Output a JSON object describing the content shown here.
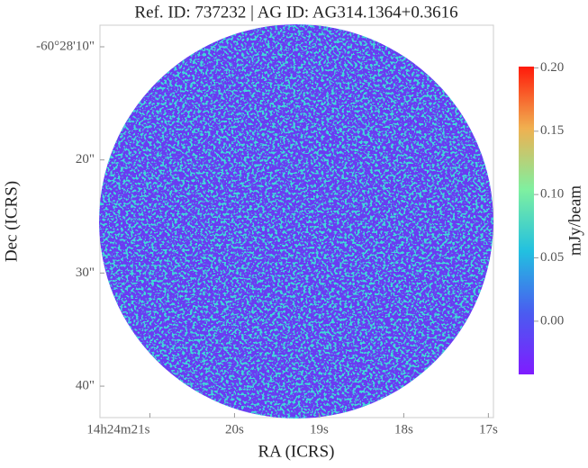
{
  "chart_data": {
    "type": "image",
    "title": "Ref. ID: 737232 | AG ID: AG314.1364+0.3616",
    "xlabel": "RA (ICRS)",
    "ylabel": "Dec (ICRS)",
    "xlim": [
      21.59,
      16.94
    ],
    "xticks": [
      {
        "value": 21,
        "label": "14h24m21s"
      },
      {
        "value": 20,
        "label": "20s"
      },
      {
        "value": 19,
        "label": "19s"
      },
      {
        "value": 18,
        "label": "18s"
      },
      {
        "value": 17,
        "label": "17s"
      }
    ],
    "ylim": [
      42.78,
      8.09
    ],
    "yticks": [
      {
        "value": 10,
        "label": "-60°28'10\""
      },
      {
        "value": 20,
        "label": "20\""
      },
      {
        "value": 30,
        "label": "30\""
      },
      {
        "value": 40,
        "label": "40\""
      }
    ],
    "colorbar": {
      "label": "mJy/beam",
      "lim": [
        -0.042,
        0.201
      ],
      "ticks": [
        {
          "value": 0,
          "label": "0.00"
        },
        {
          "value": 0.05,
          "label": "0.05"
        },
        {
          "value": 0.1,
          "label": "0.10"
        },
        {
          "value": 0.15,
          "label": "0.15"
        },
        {
          "value": 0.2,
          "label": "0.20"
        }
      ]
    }
  }
}
